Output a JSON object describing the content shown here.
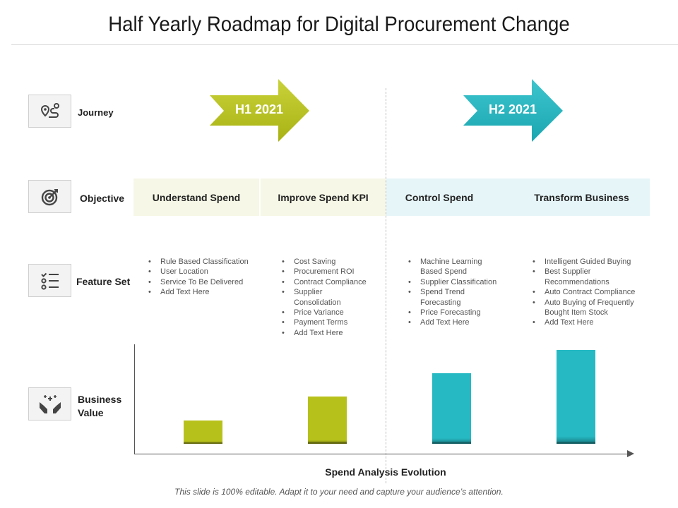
{
  "title": "Half Yearly Roadmap for Digital Procurement Change",
  "rows": {
    "journey": {
      "label": "Journey",
      "icon": "route-pin-icon"
    },
    "objective": {
      "label": "Objective",
      "icon": "target-icon"
    },
    "feature_set": {
      "label": "Feature Set",
      "icon": "checklist-icon"
    },
    "business_value": {
      "label_line1": "Business",
      "label_line2": "Value",
      "icon": "hands-sparkle-icon"
    }
  },
  "journey": [
    {
      "label": "H1 2021",
      "color": "#b7c11b"
    },
    {
      "label": "H2 2021",
      "color": "#26b9c3"
    }
  ],
  "objectives": [
    {
      "label": "Understand Spend",
      "band_color": "#f6f7e6"
    },
    {
      "label": "Improve Spend KPI",
      "band_color": "#f6f7e6"
    },
    {
      "label": "Control Spend",
      "band_color": "#e6f5f8"
    },
    {
      "label": "Transform Business",
      "band_color": "#e6f5f8"
    }
  ],
  "features": [
    {
      "items": [
        [
          "Rule Based Classification"
        ],
        [
          "User Location"
        ],
        [
          "Service To Be Delivered"
        ],
        [
          "Add Text Here"
        ]
      ]
    },
    {
      "items": [
        [
          "Cost Saving"
        ],
        [
          "Procurement ROI"
        ],
        [
          "Contract Compliance"
        ],
        [
          "Supplier",
          "Consolidation"
        ],
        [
          "Price Variance"
        ],
        [
          "Payment Terms"
        ],
        [
          "Add Text Here"
        ]
      ]
    },
    {
      "items": [
        [
          "Machine Learning",
          "Based Spend"
        ],
        [
          "Supplier Classification"
        ],
        [
          "Spend Trend",
          "Forecasting"
        ],
        [
          "Price Forecasting"
        ],
        [
          "Add Text Here"
        ]
      ]
    },
    {
      "items": [
        [
          "Intelligent Guided Buying"
        ],
        [
          "Best Supplier",
          "Recommendations"
        ],
        [
          "Auto Contract Compliance"
        ],
        [
          "Auto Buying of Frequently",
          "Bought Item Stock"
        ],
        [
          "Add Text Here"
        ]
      ]
    }
  ],
  "chart_data": {
    "type": "bar",
    "categories": [
      "Understand Spend",
      "Improve Spend KPI",
      "Control Spend",
      "Transform Business"
    ],
    "values": [
      1,
      2,
      3,
      4
    ],
    "colors": [
      "#b7c11b",
      "#b7c11b",
      "#26b9c3",
      "#26b9c3"
    ],
    "xlabel": "Spend Analysis Evolution",
    "ylabel": "",
    "ylim": [
      0,
      4.2
    ],
    "grid": false
  },
  "footer": "This slide is 100% editable. Adapt it to your need and capture your audience’s attention."
}
